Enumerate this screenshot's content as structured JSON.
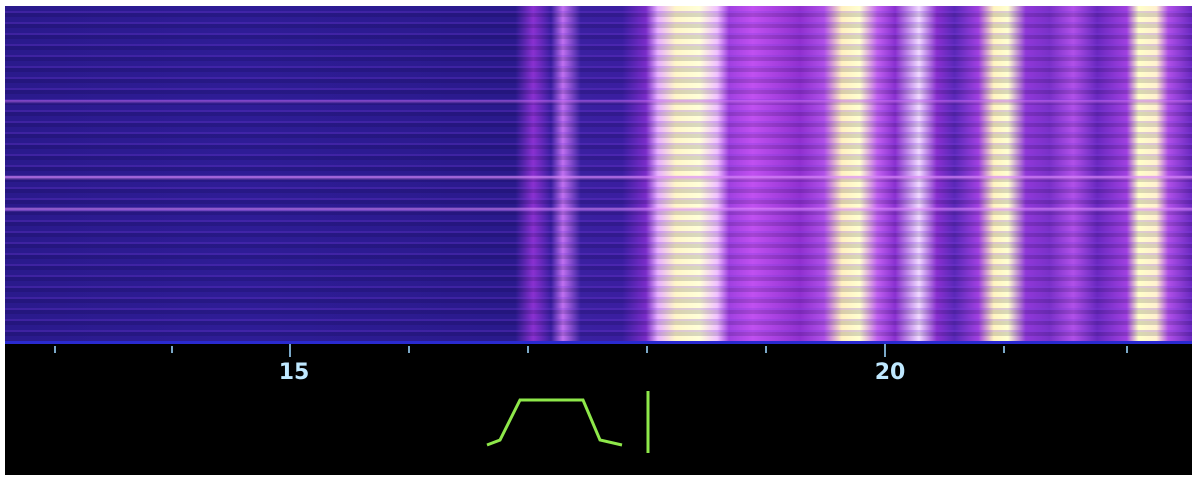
{
  "frequency_scale": {
    "labels": [
      "15",
      "20"
    ]
  }
}
